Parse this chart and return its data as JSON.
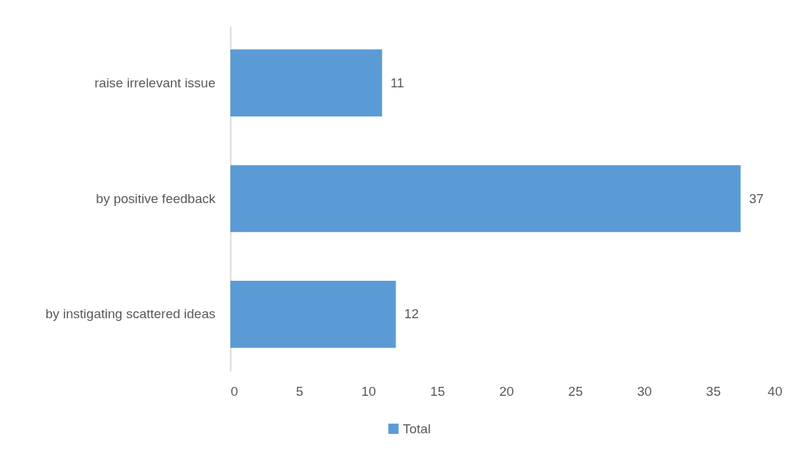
{
  "chart_data": {
    "type": "bar",
    "orientation": "horizontal",
    "categories": [
      "raise irrelevant issue",
      "by positive feedback",
      "by instigating scattered ideas"
    ],
    "series": [
      {
        "name": "Total",
        "color": "#5b9bd5",
        "values": [
          11,
          37,
          12
        ]
      }
    ],
    "xlim": [
      0,
      40
    ],
    "xticks": [
      0,
      5,
      10,
      15,
      20,
      25,
      30,
      35,
      40
    ],
    "data_labels": true,
    "grid": false,
    "legend": "bottom"
  }
}
